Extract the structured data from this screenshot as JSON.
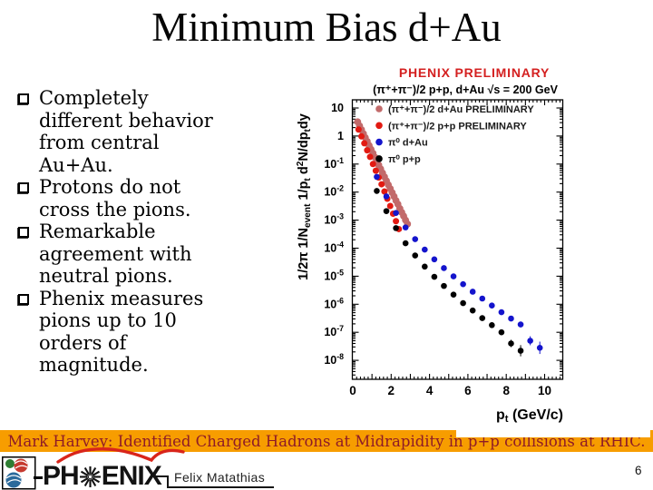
{
  "slide": {
    "title": "Minimum Bias d+Au",
    "bullets": [
      "Completely\ndifferent behavior\nfrom central\nAu+Au.",
      "Protons do not\ncross the pions.",
      "Remarkable\nagreement with\nneutral pions.",
      "Phenix measures\npions up to 10\norders of\nmagnitude."
    ]
  },
  "footer": {
    "banner_text": "Mark Harvey: Identified Charged Hadrons at Midrapidity in p+p collisions at RHIC.",
    "logo_ph": "PH",
    "logo_enix": "ENIX",
    "author_name": "Felix Matathias",
    "page_number": "6"
  },
  "colors": {
    "banner_bg": "#F79D00",
    "banner_text": "#8E1B27",
    "chart_title_red": "#D42020",
    "dau_charged": "#C26A6A",
    "pp_charged": "#E21A12",
    "dau_pi0": "#1414CC",
    "pp_pi0": "#000000"
  },
  "chart_data": {
    "type": "scatter",
    "title": "PHENIX PRELIMINARY",
    "subtitle": "(π⁺+π⁻)/2 p+p, d+Au √s = 200 GeV",
    "xlabel": "p_{t} (GeV/c)",
    "ylabel": "1/2π 1/N_{event} 1/p_{t} d^{2}N/dp_{t}dy",
    "x_axis": {
      "min": 0,
      "max": 10.95,
      "labeled_ticks": [
        0,
        2,
        4,
        6,
        8,
        10
      ]
    },
    "y_axis": {
      "scale": "log",
      "tick_exponents": [
        1,
        0,
        -1,
        -2,
        -3,
        -4,
        -5,
        -6,
        -7,
        -8
      ],
      "tick_labels": [
        "10",
        "1",
        "10^{-1}",
        "10^{-2}",
        "10^{-3}",
        "10^{-4}",
        "10^{-5}",
        "10^{-6}",
        "10^{-7}",
        "10^{-8}"
      ]
    },
    "legend": [
      {
        "label": "(π⁺+π⁻)/2 d+Au PRELIMINARY",
        "series": "dau_charged"
      },
      {
        "label": "(π⁺+π⁻)/2 p+p   PRELIMINARY",
        "series": "pp_charged"
      },
      {
        "label": "π⁰ d+Au",
        "series": "dau_pi0"
      },
      {
        "label": "π⁰ p+p",
        "series": "pp_pi0"
      }
    ],
    "series": [
      {
        "id": "dau_charged",
        "color": "#C26A6A",
        "marker_r": 3.9,
        "points": [
          [
            0.25,
            3.2
          ],
          [
            0.35,
            2.32
          ],
          [
            0.45,
            1.68
          ],
          [
            0.55,
            1.22
          ],
          [
            0.65,
            0.88
          ],
          [
            0.75,
            0.64
          ],
          [
            0.85,
            0.46
          ],
          [
            0.95,
            0.335
          ],
          [
            1.05,
            0.243
          ],
          [
            1.15,
            0.176
          ],
          [
            1.25,
            0.127
          ],
          [
            1.35,
            0.092
          ],
          [
            1.45,
            0.067
          ],
          [
            1.55,
            0.048
          ],
          [
            1.65,
            0.035
          ],
          [
            1.75,
            0.0253
          ],
          [
            1.85,
            0.0183
          ],
          [
            1.95,
            0.0133
          ],
          [
            2.05,
            0.0096
          ],
          [
            2.15,
            0.007
          ],
          [
            2.25,
            0.005
          ],
          [
            2.35,
            0.0037
          ],
          [
            2.45,
            0.0026
          ],
          [
            2.55,
            0.0019
          ],
          [
            2.65,
            0.0014
          ],
          [
            2.75,
            0.001
          ],
          [
            2.85,
            0.00073
          ]
        ]
      },
      {
        "id": "pp_charged",
        "color": "#E21A12",
        "marker_r": 3.5,
        "points": [
          [
            0.3,
            1.7
          ],
          [
            0.45,
            0.97
          ],
          [
            0.6,
            0.55
          ],
          [
            0.75,
            0.31
          ],
          [
            0.9,
            0.18
          ],
          [
            1.05,
            0.1
          ],
          [
            1.2,
            0.058
          ],
          [
            1.35,
            0.033
          ],
          [
            1.5,
            0.019
          ],
          [
            1.65,
            0.0105
          ],
          [
            1.8,
            0.0058
          ],
          [
            1.95,
            0.0032
          ],
          [
            2.1,
            0.0017
          ],
          [
            2.25,
            0.00092
          ],
          [
            2.4,
            0.00048
          ]
        ]
      },
      {
        "id": "dau_pi0",
        "color": "#1414CC",
        "marker_r": 3.3,
        "points": [
          [
            1.25,
            0.035
          ],
          [
            1.75,
            0.007
          ],
          [
            2.25,
            0.0018
          ],
          [
            2.75,
            0.00055
          ],
          [
            3.25,
            0.00021
          ],
          [
            3.75,
            8.9e-05
          ],
          [
            4.25,
            4e-05
          ],
          [
            4.75,
            1.95e-05
          ],
          [
            5.25,
            9.9e-06
          ],
          [
            5.75,
            5.2e-06
          ],
          [
            6.25,
            2.8e-06
          ],
          [
            6.75,
            1.6e-06
          ],
          [
            7.25,
            9e-07
          ],
          [
            7.75,
            5.2e-07
          ],
          [
            8.25,
            3.1e-07
          ],
          [
            8.75,
            1.9e-07,
            0.1
          ],
          [
            9.25,
            5e-08,
            0.16
          ],
          [
            9.75,
            2.8e-08,
            0.22
          ]
        ]
      },
      {
        "id": "pp_pi0",
        "color": "#000000",
        "marker_r": 3.3,
        "points": [
          [
            1.25,
            0.011
          ],
          [
            1.75,
            0.0021
          ],
          [
            2.25,
            0.00052
          ],
          [
            2.75,
            0.00015
          ],
          [
            3.25,
            5.5e-05
          ],
          [
            3.75,
            2.2e-05
          ],
          [
            4.25,
            9.5e-06
          ],
          [
            4.75,
            4.5e-06
          ],
          [
            5.25,
            2.2e-06
          ],
          [
            5.75,
            1.1e-06
          ],
          [
            6.25,
            6e-07
          ],
          [
            6.75,
            3.2e-07
          ],
          [
            7.25,
            1.8e-07
          ],
          [
            7.75,
            1e-07
          ],
          [
            8.25,
            4e-08,
            0.13
          ],
          [
            8.75,
            2.2e-08,
            0.2
          ]
        ]
      }
    ]
  }
}
